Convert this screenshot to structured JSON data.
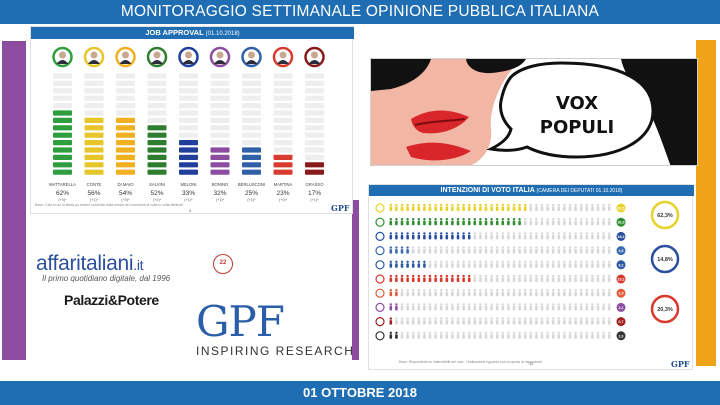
{
  "header": {
    "title": "MONITORAGGIO SETTIMANALE OPINIONE PUBBLICA ITALIANA"
  },
  "footer": {
    "date": "01 OTTOBRE 2018"
  },
  "colors": {
    "brand_blue": "#1f6db2",
    "purple": "#8c4ca0",
    "gold": "#f0a319"
  },
  "job_approval": {
    "title": "JOB APPROVAL",
    "subtitle": "(01.10.2018)",
    "footer_note": "Base: Casi in cui la stima pu essere condotta dalla media dei commenti di volta in volta attribuiti",
    "page_number": "4",
    "logo_text": "GPF",
    "chart_data": {
      "type": "bar",
      "categories": [
        "MATTARELLA",
        "CONTE",
        "DI MAIO",
        "SALVINI",
        "MELONI",
        "BONINO",
        "BERLUSCONI",
        "MARTINA",
        "GRASSO"
      ],
      "values": [
        62,
        56,
        54,
        52,
        33,
        32,
        25,
        23,
        17
      ],
      "value_labels": [
        "62%",
        "56%",
        "54%",
        "52%",
        "33%",
        "32%",
        "25%",
        "23%",
        "17%"
      ],
      "deltas": [
        "(+0)*",
        "(+1)*",
        "(+0)*",
        "(+2)*",
        "(+1)*",
        "(+1)*",
        "(+1)*",
        "(+0)*",
        "(+1)*"
      ],
      "colors": [
        "#2e9e3e",
        "#e7c62a",
        "#f0b020",
        "#2f7d2f",
        "#1f3f9a",
        "#8c4ca0",
        "#3060a8",
        "#d83a2e",
        "#8a1a1a"
      ],
      "ylim": [
        0,
        100
      ]
    }
  },
  "vox_populi": {
    "line1": "VOX",
    "line2": "POPULI"
  },
  "intenzioni": {
    "title": "INTENZIONI DI VOTO ITALIA",
    "subtitle": "(CAMERA DEI DEPUTATI 01.10.2018)",
    "footer_note": "Base: Rispondenti su l'attendibilit del voto ; l'indicazione riguarda solo la quota di rispondenti",
    "page_number": "12",
    "logo_text": "GPF",
    "chart_data": {
      "type": "bar",
      "rows": [
        {
          "color": "#e7d22a",
          "value_label": "31,5"
        },
        {
          "color": "#2f8f2f",
          "value_label": "30,3"
        },
        {
          "color": "#2a4fa0",
          "value_label": "18,3"
        },
        {
          "color": "#3a6ab0",
          "value_label": "4,6"
        },
        {
          "color": "#2c5aa0",
          "value_label": "9,2"
        },
        {
          "color": "#d83a2e",
          "value_label": "19,2"
        },
        {
          "color": "#e05a3a",
          "value_label": "2,5"
        },
        {
          "color": "#8c4ca0",
          "value_label": "2,1"
        },
        {
          "color": "#a02020",
          "value_label": "0,7"
        },
        {
          "color": "#333333",
          "value_label": "2,0"
        }
      ],
      "groups": [
        {
          "value_label": "62,3%"
        },
        {
          "value_label": "14,8%"
        },
        {
          "value_label": "20,3%"
        }
      ]
    }
  },
  "logos": {
    "affari": {
      "brand": "affaritaliani",
      "suffix": ".it",
      "tagline": "Il primo quotidiano digitale, dal 1996",
      "badge": "22"
    },
    "palazzi": "Palazzi&Potere",
    "gpf": {
      "big": "GPF",
      "tagline": "INSPIRING RESEARCH"
    }
  }
}
